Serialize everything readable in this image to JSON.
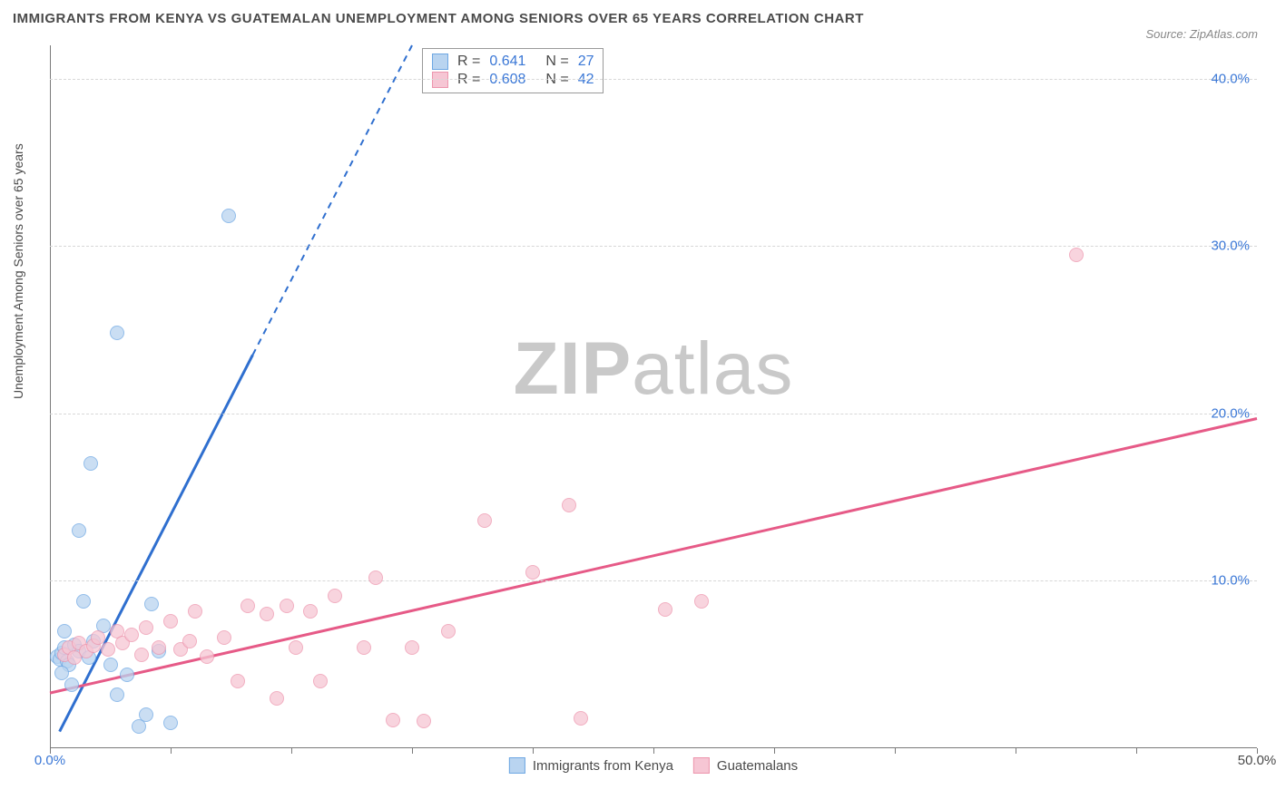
{
  "title": "IMMIGRANTS FROM KENYA VS GUATEMALAN UNEMPLOYMENT AMONG SENIORS OVER 65 YEARS CORRELATION CHART",
  "source": "Source: ZipAtlas.com",
  "watermark_a": "ZIP",
  "watermark_b": "atlas",
  "chart": {
    "type": "scatter",
    "ylabel": "Unemployment Among Seniors over 65 years",
    "xlim": [
      0,
      50
    ],
    "ylim": [
      0,
      42
    ],
    "x_ticks": [
      0,
      5,
      10,
      15,
      20,
      25,
      30,
      35,
      40,
      45,
      50
    ],
    "x_tick_labels": {
      "0": "0.0%",
      "50": "50.0%"
    },
    "x_label_color_left": "#3a77d6",
    "x_label_color_right": "#4a4a4a",
    "y_ticks": [
      10,
      20,
      30,
      40
    ],
    "y_tick_labels": [
      "10.0%",
      "20.0%",
      "30.0%",
      "40.0%"
    ],
    "y_label_color": "#3a77d6",
    "grid_color": "#d7d7d7",
    "axis_color": "#7a7a7a",
    "background_color": "#ffffff",
    "marker_radius": 8,
    "series": [
      {
        "name": "Immigrants from Kenya",
        "fill": "#b9d4f0",
        "stroke": "#6ea7e3",
        "line_color": "#2f6fcf",
        "r_label": "R  =",
        "r_value": "0.641",
        "n_label": "N  =",
        "n_value": "27",
        "trend": {
          "solid_from": [
            0.4,
            1.0
          ],
          "solid_to": [
            8.4,
            23.5
          ],
          "dash_to": [
            15.0,
            42.0
          ]
        },
        "points": [
          [
            0.3,
            5.5
          ],
          [
            0.4,
            5.3
          ],
          [
            0.5,
            5.7
          ],
          [
            0.6,
            6.0
          ],
          [
            0.7,
            5.2
          ],
          [
            0.8,
            5.0
          ],
          [
            0.5,
            4.5
          ],
          [
            1.0,
            6.2
          ],
          [
            1.2,
            5.8
          ],
          [
            0.6,
            7.0
          ],
          [
            0.9,
            3.8
          ],
          [
            1.6,
            5.4
          ],
          [
            1.8,
            6.4
          ],
          [
            2.2,
            7.3
          ],
          [
            2.5,
            5.0
          ],
          [
            2.8,
            3.2
          ],
          [
            3.2,
            4.4
          ],
          [
            3.7,
            1.3
          ],
          [
            4.0,
            2.0
          ],
          [
            4.2,
            8.6
          ],
          [
            5.0,
            1.5
          ],
          [
            1.2,
            13.0
          ],
          [
            1.7,
            17.0
          ],
          [
            1.4,
            8.8
          ],
          [
            2.8,
            24.8
          ],
          [
            7.4,
            31.8
          ],
          [
            4.5,
            5.8
          ]
        ]
      },
      {
        "name": "Guatemalans",
        "fill": "#f6c6d4",
        "stroke": "#ed95ad",
        "line_color": "#e65a87",
        "r_label": "R  =",
        "r_value": "0.608",
        "n_label": "N  =",
        "n_value": "42",
        "trend": {
          "solid_from": [
            0.0,
            3.3
          ],
          "solid_to": [
            50.0,
            19.7
          ],
          "dash_to": null
        },
        "points": [
          [
            0.6,
            5.6
          ],
          [
            0.8,
            6.0
          ],
          [
            1.0,
            5.4
          ],
          [
            1.2,
            6.3
          ],
          [
            1.5,
            5.8
          ],
          [
            1.8,
            6.1
          ],
          [
            2.0,
            6.6
          ],
          [
            2.4,
            5.9
          ],
          [
            2.8,
            7.0
          ],
          [
            3.0,
            6.3
          ],
          [
            3.4,
            6.8
          ],
          [
            3.8,
            5.6
          ],
          [
            4.0,
            7.2
          ],
          [
            4.5,
            6.0
          ],
          [
            5.0,
            7.6
          ],
          [
            5.4,
            5.9
          ],
          [
            5.8,
            6.4
          ],
          [
            6.0,
            8.2
          ],
          [
            6.5,
            5.5
          ],
          [
            7.2,
            6.6
          ],
          [
            7.8,
            4.0
          ],
          [
            8.2,
            8.5
          ],
          [
            9.0,
            8.0
          ],
          [
            9.4,
            3.0
          ],
          [
            9.8,
            8.5
          ],
          [
            10.2,
            6.0
          ],
          [
            10.8,
            8.2
          ],
          [
            11.2,
            4.0
          ],
          [
            11.8,
            9.1
          ],
          [
            13.0,
            6.0
          ],
          [
            13.5,
            10.2
          ],
          [
            14.2,
            1.7
          ],
          [
            15.0,
            6.0
          ],
          [
            15.5,
            1.6
          ],
          [
            16.5,
            7.0
          ],
          [
            18.0,
            13.6
          ],
          [
            20.0,
            10.5
          ],
          [
            22.0,
            1.8
          ],
          [
            21.5,
            14.5
          ],
          [
            25.5,
            8.3
          ],
          [
            27.0,
            8.8
          ],
          [
            42.5,
            29.5
          ]
        ]
      }
    ]
  },
  "legend_top_text_color": "#4a4a4a",
  "legend_top_value_color": "#3a77d6"
}
